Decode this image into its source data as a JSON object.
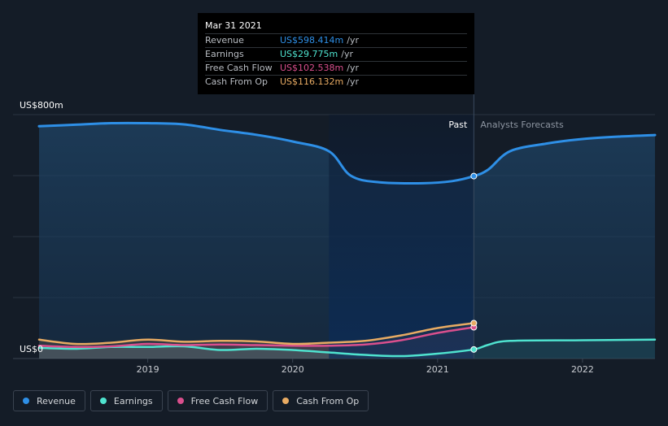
{
  "chart_data": {
    "type": "area",
    "y_axis": {
      "top_label": "US$800m",
      "zero_label": "US$0",
      "ylim": [
        0,
        800
      ]
    },
    "x_ticks": [
      "2019",
      "2020",
      "2021",
      "2022"
    ],
    "x_tick_years": [
      2019,
      2020,
      2021,
      2022
    ],
    "xlim": [
      2018.25,
      2022.5
    ],
    "divider_x": 2021.25,
    "highlight_start_x": 2020.25,
    "region_labels": {
      "past": "Past",
      "forecast": "Analysts Forecasts"
    },
    "series": [
      {
        "name": "Revenue",
        "color": "#2e8fe6",
        "past": [
          [
            2018.25,
            762
          ],
          [
            2018.5,
            767
          ],
          [
            2018.75,
            772
          ],
          [
            2019.0,
            772
          ],
          [
            2019.25,
            768
          ],
          [
            2019.5,
            750
          ],
          [
            2019.75,
            734
          ],
          [
            2020.0,
            712
          ],
          [
            2020.25,
            680
          ],
          [
            2020.4,
            600
          ],
          [
            2020.6,
            578
          ],
          [
            2020.9,
            575
          ],
          [
            2021.1,
            582
          ],
          [
            2021.25,
            598.414
          ]
        ],
        "forecast": [
          [
            2021.25,
            598.414
          ],
          [
            2021.35,
            620
          ],
          [
            2021.5,
            680
          ],
          [
            2021.75,
            705
          ],
          [
            2022.0,
            720
          ],
          [
            2022.25,
            728
          ],
          [
            2022.5,
            733
          ]
        ]
      },
      {
        "name": "Earnings",
        "color": "#4fe3cf",
        "past": [
          [
            2018.25,
            35
          ],
          [
            2018.5,
            32
          ],
          [
            2018.75,
            38
          ],
          [
            2019.0,
            38
          ],
          [
            2019.25,
            40
          ],
          [
            2019.5,
            28
          ],
          [
            2019.75,
            32
          ],
          [
            2020.0,
            28
          ],
          [
            2020.25,
            20
          ],
          [
            2020.5,
            12
          ],
          [
            2020.75,
            8
          ],
          [
            2021.0,
            16
          ],
          [
            2021.25,
            29.775
          ]
        ],
        "forecast": [
          [
            2021.25,
            29.775
          ],
          [
            2021.35,
            45
          ],
          [
            2021.5,
            58
          ],
          [
            2022.0,
            60
          ],
          [
            2022.5,
            62
          ]
        ]
      },
      {
        "name": "Free Cash Flow",
        "color": "#d94f8d",
        "past": [
          [
            2018.25,
            42
          ],
          [
            2018.5,
            38
          ],
          [
            2018.75,
            40
          ],
          [
            2019.0,
            48
          ],
          [
            2019.25,
            44
          ],
          [
            2019.5,
            46
          ],
          [
            2019.75,
            44
          ],
          [
            2020.0,
            42
          ],
          [
            2020.25,
            42
          ],
          [
            2020.5,
            46
          ],
          [
            2020.75,
            60
          ],
          [
            2021.0,
            84
          ],
          [
            2021.25,
            102.538
          ]
        ],
        "forecast": []
      },
      {
        "name": "Cash From Op",
        "color": "#e8ab63",
        "past": [
          [
            2018.25,
            62
          ],
          [
            2018.5,
            48
          ],
          [
            2018.75,
            52
          ],
          [
            2019.0,
            62
          ],
          [
            2019.25,
            55
          ],
          [
            2019.5,
            58
          ],
          [
            2019.75,
            56
          ],
          [
            2020.0,
            48
          ],
          [
            2020.25,
            52
          ],
          [
            2020.5,
            58
          ],
          [
            2020.75,
            76
          ],
          [
            2021.0,
            100
          ],
          [
            2021.25,
            116.132
          ]
        ],
        "forecast": []
      }
    ]
  },
  "tooltip": {
    "date": "Mar 31 2021",
    "rows": [
      {
        "label": "Revenue",
        "value": "US$598.414m",
        "unit": "/yr",
        "color": "#2e8fe6"
      },
      {
        "label": "Earnings",
        "value": "US$29.775m",
        "unit": "/yr",
        "color": "#4fe3cf"
      },
      {
        "label": "Free Cash Flow",
        "value": "US$102.538m",
        "unit": "/yr",
        "color": "#d94f8d"
      },
      {
        "label": "Cash From Op",
        "value": "US$116.132m",
        "unit": "/yr",
        "color": "#e8ab63"
      }
    ]
  },
  "legend": [
    {
      "label": "Revenue",
      "color": "#2e8fe6"
    },
    {
      "label": "Earnings",
      "color": "#4fe3cf"
    },
    {
      "label": "Free Cash Flow",
      "color": "#d94f8d"
    },
    {
      "label": "Cash From Op",
      "color": "#e8ab63"
    }
  ]
}
